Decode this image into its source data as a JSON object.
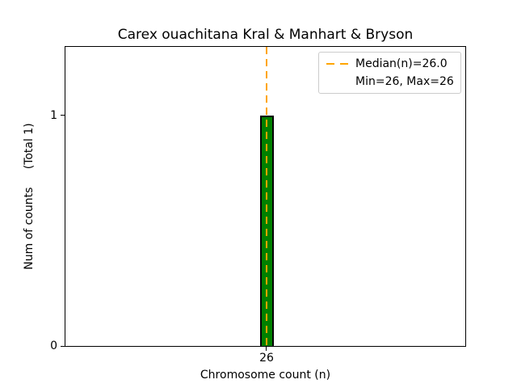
{
  "chart_data": {
    "type": "bar",
    "title": "Carex ouachitana Kral & Manhart & Bryson",
    "xlabel": "Chromosome count (n)",
    "ylabel": "Num of counts     (Total 1)",
    "categories": [
      "26"
    ],
    "values": [
      1
    ],
    "total_counts": 1,
    "median": "26.0",
    "min": 26,
    "max": 26,
    "ylim": [
      0,
      1.3
    ],
    "yticks": [
      "0",
      "1"
    ],
    "xticks": [
      "26"
    ],
    "grid": false,
    "bar_color": "#008000",
    "bar_edge_color": "#000000",
    "median_line": {
      "x": 26,
      "color": "#FFA500",
      "style": "dashed"
    },
    "legend": {
      "position": "upper right",
      "items": [
        {
          "marker": "orange-dashed-line",
          "label": "Median(n)=26.0"
        },
        {
          "marker": "none",
          "label": "Min=26, Max=26"
        }
      ]
    }
  }
}
